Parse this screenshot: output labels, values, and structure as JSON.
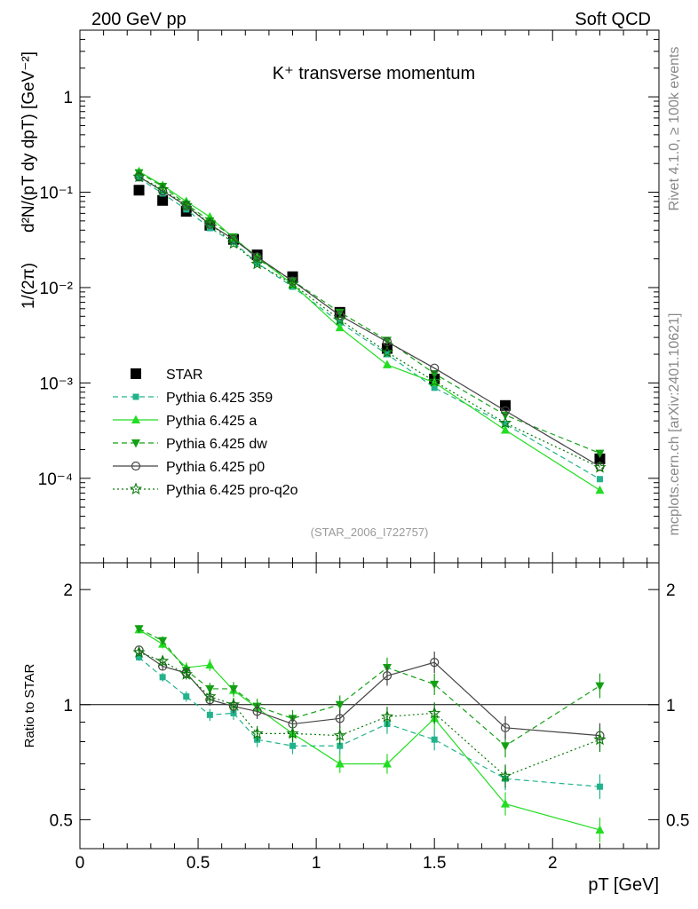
{
  "header": {
    "left_label": "200 GeV pp",
    "right_label": "Soft QCD"
  },
  "side_labels": {
    "rivet": "Rivet 4.1.0, ≥ 100k events",
    "mcplots": "mcplots.cern.ch [arXiv:2401.10621]"
  },
  "chart_data": [
    {
      "type": "scatter",
      "panel": "main",
      "title": "K⁺ transverse momentum",
      "analysis_id": "(STAR_2006_I722757)",
      "ylabel_left": "1/(2π)",
      "ylabel_right": "d²N/(pT dy dpT) [GeV⁻²]",
      "yscale": "log",
      "ylim": [
        1.3e-05,
        5.0
      ],
      "xlim": [
        0,
        2.45
      ],
      "y_tick_labels": [
        "10⁻⁴",
        "10⁻³",
        "10⁻²",
        "10⁻¹",
        "1"
      ],
      "legend_position": "lower-left",
      "x": [
        0.25,
        0.35,
        0.45,
        0.55,
        0.65,
        0.75,
        0.9,
        1.1,
        1.3,
        1.5,
        1.8,
        2.2
      ],
      "series": [
        {
          "name": "STAR",
          "color": "#000000",
          "marker": "square",
          "line": "none",
          "values": [
            0.105,
            0.082,
            0.063,
            0.045,
            0.032,
            0.022,
            0.013,
            0.0055,
            0.0023,
            0.0011,
            0.00058,
            0.00016
          ]
        },
        {
          "name": "Pythia 6.425 359",
          "color": "#22b38c",
          "marker": "square-small",
          "line": "dashed",
          "values": [
            0.14,
            0.097,
            0.066,
            0.042,
            0.03,
            0.018,
            0.0102,
            0.0043,
            0.002,
            0.00089,
            0.00037,
            9.8e-05
          ]
        },
        {
          "name": "Pythia 6.425 a",
          "color": "#22dd22",
          "marker": "triangle-up",
          "line": "solid",
          "values": [
            0.165,
            0.118,
            0.08,
            0.055,
            0.033,
            0.021,
            0.0108,
            0.0038,
            0.00155,
            0.00101,
            0.00032,
            7.5e-05
          ]
        },
        {
          "name": "Pythia 6.425 dw",
          "color": "#14a014",
          "marker": "triangle-down",
          "line": "dashed",
          "values": [
            0.16,
            0.115,
            0.075,
            0.05,
            0.034,
            0.02,
            0.0118,
            0.0055,
            0.0028,
            0.00125,
            0.00046,
            0.000183
          ]
        },
        {
          "name": "Pythia 6.425 p0",
          "color": "#444444",
          "marker": "circle-open",
          "line": "solid",
          "values": [
            0.145,
            0.103,
            0.072,
            0.046,
            0.032,
            0.021,
            0.0117,
            0.0051,
            0.0027,
            0.00143,
            0.00051,
            0.000133
          ]
        },
        {
          "name": "Pythia 6.425 pro-q2o",
          "color": "#0a7a0a",
          "marker": "star-open",
          "line": "dotted",
          "values": [
            0.145,
            0.107,
            0.073,
            0.047,
            0.029,
            0.0177,
            0.0109,
            0.0046,
            0.0021,
            0.00104,
            0.00038,
            0.00013
          ]
        }
      ]
    },
    {
      "type": "scatter",
      "panel": "ratio",
      "ylabel": "Ratio to STAR",
      "xlabel": "pT [GeV]",
      "yscale": "log",
      "ylim": [
        0.42,
        2.35
      ],
      "xlim": [
        0,
        2.45
      ],
      "x_tick_labels": [
        "0",
        "0.5",
        "1",
        "1.5",
        "2"
      ],
      "y_tick_labels": [
        "0.5",
        "1",
        "2"
      ],
      "reference_line": 1,
      "x": [
        0.25,
        0.35,
        0.45,
        0.55,
        0.65,
        0.75,
        0.9,
        1.1,
        1.3,
        1.5,
        1.8,
        2.2
      ],
      "series": [
        {
          "name": "Pythia 6.425 359",
          "values": [
            1.33,
            1.18,
            1.05,
            0.94,
            0.95,
            0.81,
            0.78,
            0.78,
            0.89,
            0.81,
            0.64,
            0.61
          ]
        },
        {
          "name": "Pythia 6.425 a",
          "values": [
            1.57,
            1.44,
            1.25,
            1.27,
            1.09,
            0.98,
            0.84,
            0.7,
            0.7,
            0.92,
            0.55,
            0.47
          ]
        },
        {
          "name": "Pythia 6.425 dw",
          "values": [
            1.58,
            1.47,
            1.23,
            1.1,
            1.1,
            0.99,
            0.92,
            1.0,
            1.25,
            1.13,
            0.78,
            1.12
          ]
        },
        {
          "name": "Pythia 6.425 p0",
          "values": [
            1.39,
            1.26,
            1.21,
            1.03,
            0.99,
            0.96,
            0.89,
            0.92,
            1.19,
            1.29,
            0.87,
            0.83
          ]
        },
        {
          "name": "Pythia 6.425 pro-q2o",
          "values": [
            1.37,
            1.3,
            1.2,
            1.05,
            1.0,
            0.84,
            0.84,
            0.83,
            0.93,
            0.95,
            0.65,
            0.81
          ]
        }
      ]
    }
  ]
}
